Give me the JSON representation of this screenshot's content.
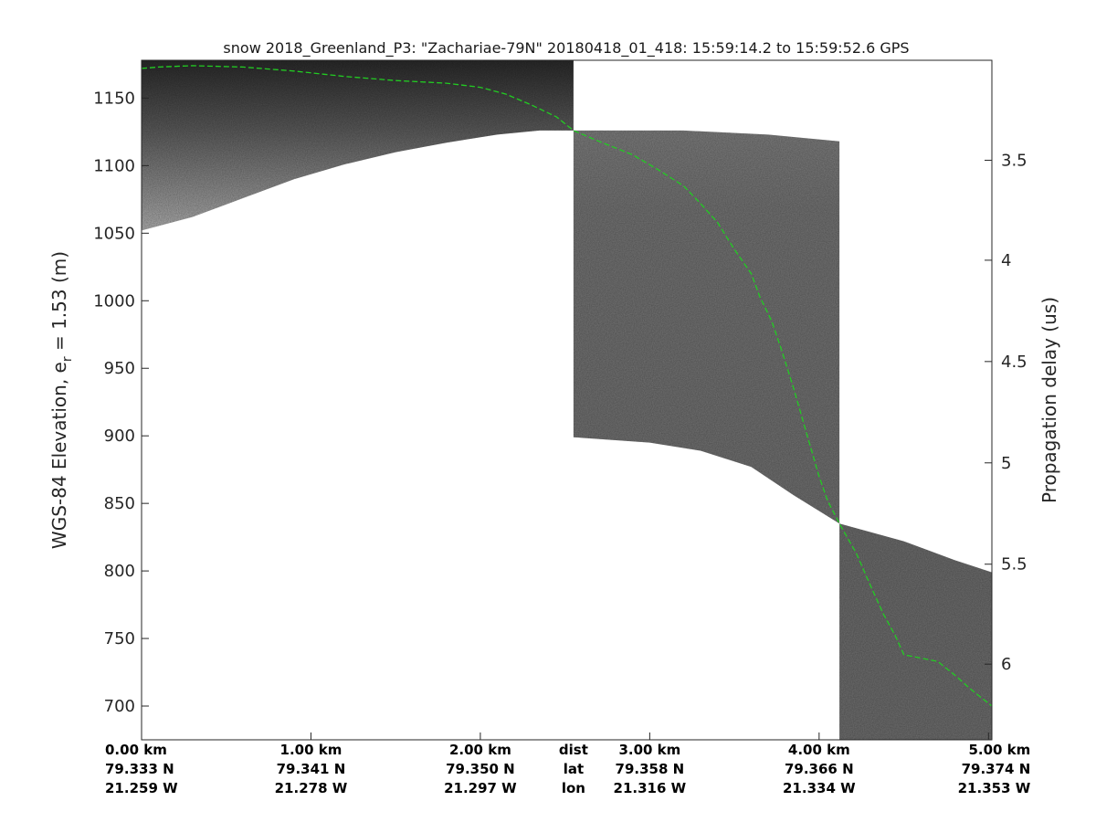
{
  "chart_data": {
    "type": "heatmap",
    "title": "snow 2018_Greenland_P3: \"Zachariae-79N\"  20180418_01_418: 15:59:14.2 to 15:59:52.6 GPS",
    "ylabel_left_main": "WGS-84 Elevation, e",
    "ylabel_left_sub": "r",
    "ylabel_left_tail": " = 1.53 (m)",
    "ylabel_right": "Propagation delay (us)",
    "xlim_km": [
      0,
      5.02
    ],
    "ylim_left": [
      675,
      1178
    ],
    "left_ticks": [
      {
        "value": 1150,
        "label": "1150"
      },
      {
        "value": 1100,
        "label": "1100"
      },
      {
        "value": 1050,
        "label": "1050"
      },
      {
        "value": 1000,
        "label": "1000"
      },
      {
        "value": 950,
        "label": "950"
      },
      {
        "value": 900,
        "label": "900"
      },
      {
        "value": 850,
        "label": "850"
      },
      {
        "value": 800,
        "label": "800"
      },
      {
        "value": 750,
        "label": "750"
      },
      {
        "value": 700,
        "label": "700"
      }
    ],
    "right_ticks": [
      {
        "elev": 1104,
        "label": "3.5"
      },
      {
        "elev": 1030,
        "label": "4"
      },
      {
        "elev": 955,
        "label": "4.5"
      },
      {
        "elev": 880,
        "label": "5"
      },
      {
        "elev": 805,
        "label": "5.5"
      },
      {
        "elev": 731,
        "label": "6"
      }
    ],
    "bottom_ticks": [
      {
        "km": 0.0,
        "dist": "0.00 km",
        "lat": "79.333 N",
        "lon": "21.259 W"
      },
      {
        "km": 1.0,
        "dist": "1.00 km",
        "lat": "79.341 N",
        "lon": "21.278 W"
      },
      {
        "km": 2.0,
        "dist": "2.00 km",
        "lat": "79.350 N",
        "lon": "21.297 W"
      },
      {
        "km": 3.0,
        "dist": "3.00 km",
        "lat": "79.358 N",
        "lon": "21.316 W"
      },
      {
        "km": 4.0,
        "dist": "4.00 km",
        "lat": "79.366 N",
        "lon": "21.334 W"
      },
      {
        "km": 5.0,
        "dist": "5.00 km",
        "lat": "79.374 N",
        "lon": "21.353 W"
      }
    ],
    "row_labels": {
      "km": 2.55,
      "dist": "dist",
      "lat": "lat",
      "lon": "lon"
    },
    "segments": [
      {
        "x_km": [
          0,
          2.55
        ],
        "top": [
          [
            0,
            1178
          ],
          [
            2.55,
            1178
          ]
        ],
        "bottom": [
          [
            0,
            1052
          ],
          [
            0.3,
            1062
          ],
          [
            0.6,
            1076
          ],
          [
            0.9,
            1090
          ],
          [
            1.2,
            1101
          ],
          [
            1.5,
            1110
          ],
          [
            1.8,
            1117
          ],
          [
            2.1,
            1123
          ],
          [
            2.35,
            1126
          ],
          [
            2.55,
            1126
          ]
        ]
      },
      {
        "x_km": [
          2.55,
          4.12
        ],
        "top": [
          [
            2.55,
            1126
          ],
          [
            3.2,
            1126
          ],
          [
            3.7,
            1123
          ],
          [
            4.12,
            1118
          ]
        ],
        "bottom": [
          [
            2.55,
            899
          ],
          [
            3.0,
            895
          ],
          [
            3.3,
            889
          ],
          [
            3.6,
            877
          ],
          [
            3.85,
            856
          ],
          [
            4.12,
            835
          ]
        ]
      },
      {
        "x_km": [
          4.12,
          5.02
        ],
        "top": [
          [
            4.12,
            835
          ],
          [
            4.5,
            822
          ],
          [
            4.8,
            808
          ],
          [
            5.02,
            799
          ]
        ],
        "bottom": [
          [
            4.12,
            675
          ],
          [
            5.02,
            675
          ]
        ]
      }
    ],
    "surface_line_color": "#22cc22",
    "surface_line": [
      [
        0,
        1172
      ],
      [
        0.1,
        1173
      ],
      [
        0.3,
        1174
      ],
      [
        0.6,
        1173
      ],
      [
        0.9,
        1170
      ],
      [
        1.2,
        1166
      ],
      [
        1.5,
        1163
      ],
      [
        1.8,
        1161
      ],
      [
        2.0,
        1158
      ],
      [
        2.15,
        1153
      ],
      [
        2.3,
        1145
      ],
      [
        2.45,
        1136
      ],
      [
        2.55,
        1126
      ],
      [
        2.7,
        1118
      ],
      [
        2.9,
        1108
      ],
      [
        3.05,
        1097
      ],
      [
        3.2,
        1085
      ],
      [
        3.3,
        1072
      ],
      [
        3.4,
        1058
      ],
      [
        3.5,
        1038
      ],
      [
        3.6,
        1020
      ],
      [
        3.65,
        1003
      ],
      [
        3.72,
        985
      ],
      [
        3.78,
        963
      ],
      [
        3.85,
        935
      ],
      [
        3.93,
        900
      ],
      [
        4.0,
        870
      ],
      [
        4.05,
        852
      ],
      [
        4.12,
        835
      ],
      [
        4.22,
        813
      ],
      [
        4.3,
        790
      ],
      [
        4.38,
        768
      ],
      [
        4.45,
        752
      ],
      [
        4.5,
        738
      ],
      [
        4.58,
        736
      ],
      [
        4.7,
        733
      ],
      [
        4.8,
        723
      ],
      [
        4.9,
        712
      ],
      [
        5.02,
        700
      ]
    ]
  }
}
